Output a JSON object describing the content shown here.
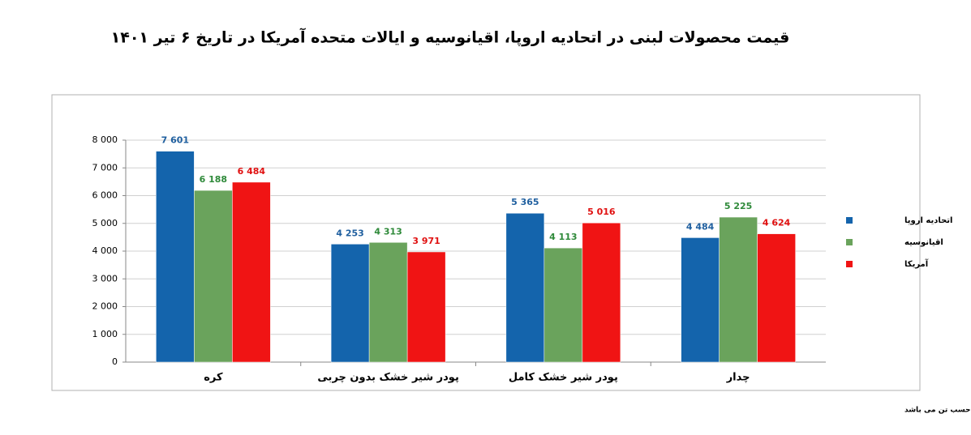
{
  "chart_data": {
    "type": "bar",
    "title": "قیمت محصولات لبنی در اتحادیه اروپا، اقیانوسیه و ایالات متحده آمریکا  در تاریخ ۶ تیر ۱۴۰۱",
    "footnote": "قیمت ها بر حسب دلار و وزن بر حسب تن می باشد",
    "categories": [
      "کره",
      "پودر شیر خشک بدون چربی",
      "پودر شیر خشک کامل",
      "چدار"
    ],
    "series": [
      {
        "name": "اتحادیه اروپا",
        "color": "#1464ac",
        "label_color": "#1f5f9f",
        "values": [
          7601,
          4253,
          5365,
          4484
        ],
        "value_labels": [
          "7 601",
          "4 253",
          "5 365",
          "4 484"
        ]
      },
      {
        "name": "اقیانوسیه",
        "color": "#6aa35c",
        "label_color": "#2f8a3a",
        "values": [
          6188,
          4313,
          4113,
          5225
        ],
        "value_labels": [
          "6 188",
          "4 313",
          "4 113",
          "5 225"
        ]
      },
      {
        "name": "آمریکا",
        "color": "#f01414",
        "label_color": "#e01010",
        "values": [
          6484,
          3971,
          5016,
          4624
        ],
        "value_labels": [
          "6 484",
          "3 971",
          "5 016",
          "4 624"
        ]
      }
    ],
    "ylim": [
      0,
      8000
    ],
    "yticks": [
      0,
      {
        "value": 1000,
        "label": "1 000"
      },
      {
        "value": 2000,
        "label": "2 000"
      },
      {
        "value": 3000,
        "label": "3 000"
      },
      {
        "value": 4000,
        "label": "4 000"
      },
      {
        "value": 5000,
        "label": "5 000"
      },
      {
        "value": 6000,
        "label": "6 000"
      },
      {
        "value": 7000,
        "label": "7 000"
      },
      {
        "value": 8000,
        "label": "8 000"
      }
    ],
    "grid": true,
    "legend": "right"
  }
}
